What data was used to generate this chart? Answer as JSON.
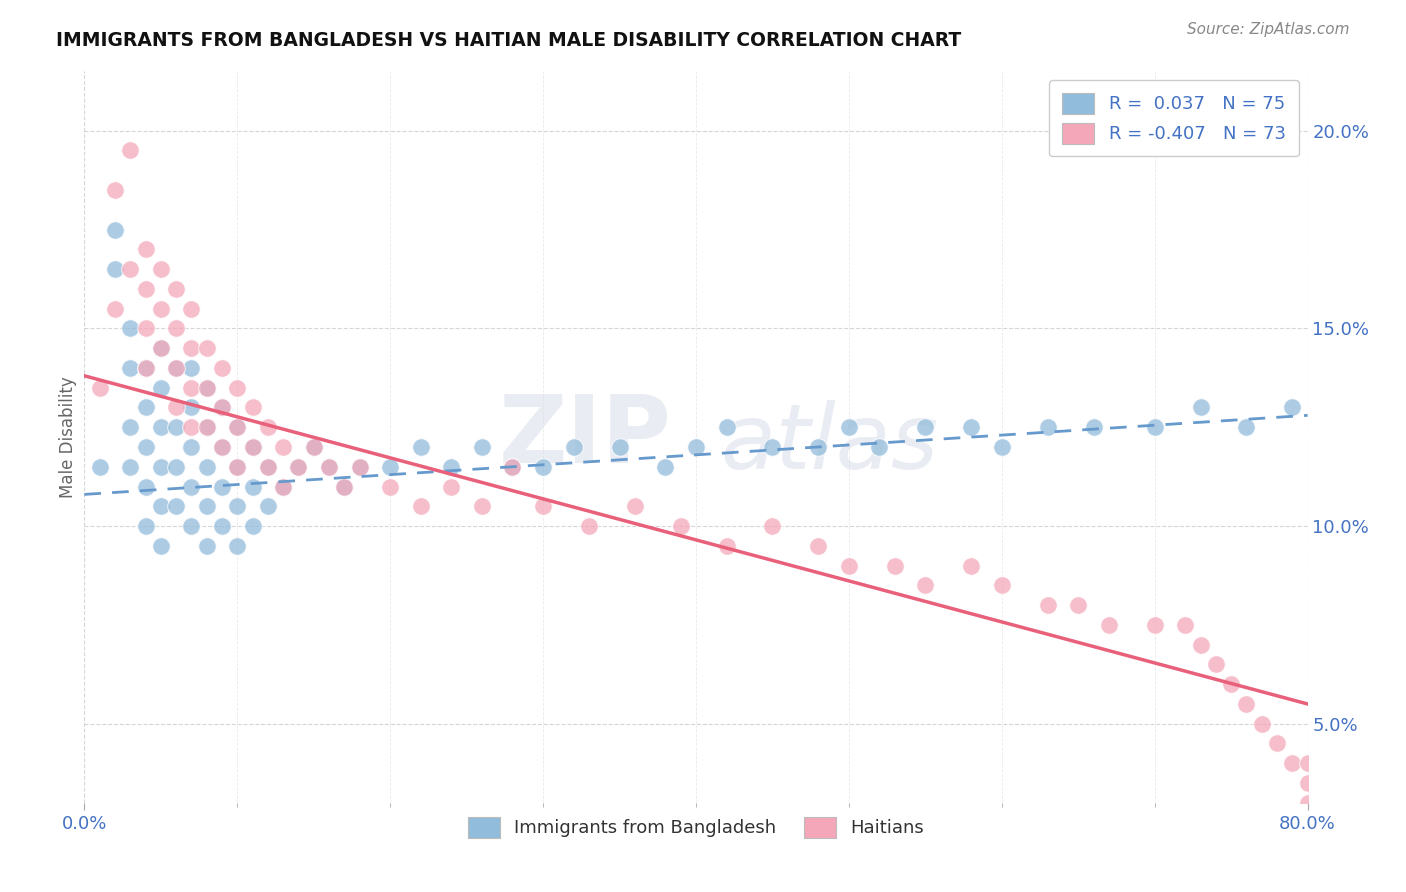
{
  "title": "IMMIGRANTS FROM BANGLADESH VS HAITIAN MALE DISABILITY CORRELATION CHART",
  "source": "Source: ZipAtlas.com",
  "ylabel": "Male Disability",
  "y_ticks": [
    "5.0%",
    "10.0%",
    "15.0%",
    "20.0%"
  ],
  "y_tick_vals": [
    0.05,
    0.1,
    0.15,
    0.2
  ],
  "x_range": [
    0.0,
    0.8
  ],
  "y_range": [
    0.03,
    0.215
  ],
  "legend_r1": "R =  0.037   N = 75",
  "legend_r2": "R = -0.407   N = 73",
  "color_blue": "#92bcdb",
  "color_pink": "#f4a7b9",
  "trendline_blue_color": "#6699cc",
  "trendline_pink_color": "#e8607a",
  "watermark_zip": "ZIP",
  "watermark_atlas": "atlas",
  "blue_trendline": [
    0.0,
    0.8,
    0.108,
    0.128
  ],
  "pink_trendline": [
    0.0,
    0.8,
    0.138,
    0.055
  ],
  "blue_x": [
    0.01,
    0.02,
    0.02,
    0.03,
    0.03,
    0.03,
    0.03,
    0.04,
    0.04,
    0.04,
    0.04,
    0.04,
    0.05,
    0.05,
    0.05,
    0.05,
    0.05,
    0.05,
    0.06,
    0.06,
    0.06,
    0.06,
    0.07,
    0.07,
    0.07,
    0.07,
    0.07,
    0.08,
    0.08,
    0.08,
    0.08,
    0.08,
    0.09,
    0.09,
    0.09,
    0.09,
    0.1,
    0.1,
    0.1,
    0.1,
    0.11,
    0.11,
    0.11,
    0.12,
    0.12,
    0.13,
    0.14,
    0.15,
    0.16,
    0.17,
    0.18,
    0.2,
    0.22,
    0.24,
    0.26,
    0.28,
    0.3,
    0.32,
    0.35,
    0.38,
    0.4,
    0.42,
    0.45,
    0.48,
    0.5,
    0.52,
    0.55,
    0.58,
    0.6,
    0.63,
    0.66,
    0.7,
    0.73,
    0.76,
    0.79
  ],
  "blue_y": [
    0.115,
    0.175,
    0.165,
    0.15,
    0.14,
    0.125,
    0.115,
    0.14,
    0.13,
    0.12,
    0.11,
    0.1,
    0.145,
    0.135,
    0.125,
    0.115,
    0.105,
    0.095,
    0.14,
    0.125,
    0.115,
    0.105,
    0.14,
    0.13,
    0.12,
    0.11,
    0.1,
    0.135,
    0.125,
    0.115,
    0.105,
    0.095,
    0.13,
    0.12,
    0.11,
    0.1,
    0.125,
    0.115,
    0.105,
    0.095,
    0.12,
    0.11,
    0.1,
    0.115,
    0.105,
    0.11,
    0.115,
    0.12,
    0.115,
    0.11,
    0.115,
    0.115,
    0.12,
    0.115,
    0.12,
    0.115,
    0.115,
    0.12,
    0.12,
    0.115,
    0.12,
    0.125,
    0.12,
    0.12,
    0.125,
    0.12,
    0.125,
    0.125,
    0.12,
    0.125,
    0.125,
    0.125,
    0.13,
    0.125,
    0.13
  ],
  "pink_x": [
    0.01,
    0.02,
    0.02,
    0.03,
    0.03,
    0.04,
    0.04,
    0.04,
    0.04,
    0.05,
    0.05,
    0.05,
    0.06,
    0.06,
    0.06,
    0.06,
    0.07,
    0.07,
    0.07,
    0.07,
    0.08,
    0.08,
    0.08,
    0.09,
    0.09,
    0.09,
    0.1,
    0.1,
    0.1,
    0.11,
    0.11,
    0.12,
    0.12,
    0.13,
    0.13,
    0.14,
    0.15,
    0.16,
    0.17,
    0.18,
    0.2,
    0.22,
    0.24,
    0.26,
    0.28,
    0.3,
    0.33,
    0.36,
    0.39,
    0.42,
    0.45,
    0.48,
    0.5,
    0.53,
    0.55,
    0.58,
    0.6,
    0.63,
    0.65,
    0.67,
    0.7,
    0.72,
    0.73,
    0.74,
    0.75,
    0.76,
    0.77,
    0.78,
    0.79,
    0.8,
    0.8,
    0.8,
    0.8
  ],
  "pink_y": [
    0.135,
    0.185,
    0.155,
    0.195,
    0.165,
    0.17,
    0.16,
    0.15,
    0.14,
    0.165,
    0.155,
    0.145,
    0.16,
    0.15,
    0.14,
    0.13,
    0.155,
    0.145,
    0.135,
    0.125,
    0.145,
    0.135,
    0.125,
    0.14,
    0.13,
    0.12,
    0.135,
    0.125,
    0.115,
    0.13,
    0.12,
    0.125,
    0.115,
    0.12,
    0.11,
    0.115,
    0.12,
    0.115,
    0.11,
    0.115,
    0.11,
    0.105,
    0.11,
    0.105,
    0.115,
    0.105,
    0.1,
    0.105,
    0.1,
    0.095,
    0.1,
    0.095,
    0.09,
    0.09,
    0.085,
    0.09,
    0.085,
    0.08,
    0.08,
    0.075,
    0.075,
    0.075,
    0.07,
    0.065,
    0.06,
    0.055,
    0.05,
    0.045,
    0.04,
    0.035,
    0.03,
    0.025,
    0.04
  ]
}
